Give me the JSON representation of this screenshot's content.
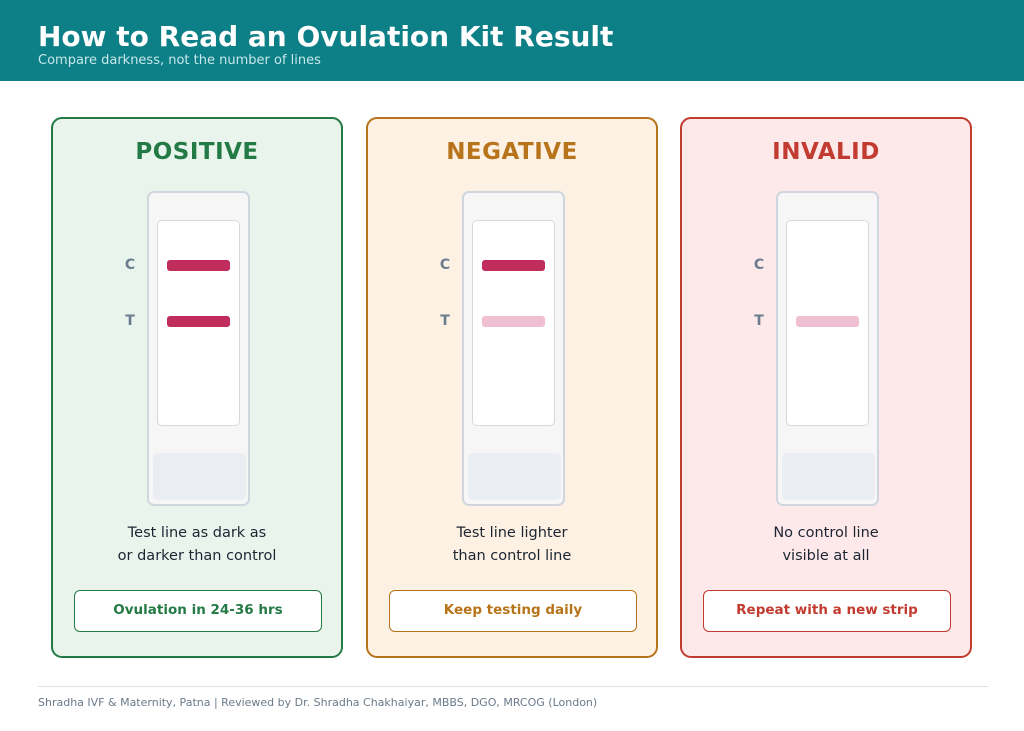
{
  "header": {
    "title": "How to Read an Ovulation Kit Result",
    "subtitle": "Compare darkness, not the number of lines"
  },
  "cards": [
    {
      "title": "POSITIVE",
      "control_label": "C",
      "test_label": "T",
      "control_line": "dark",
      "test_line": "dark",
      "description_line1": "Test line as dark as",
      "description_line2": "or darker than control",
      "action": "Ovulation in 24-36 hrs",
      "accent_color": "#237a45",
      "background_color": "#e9f5ec"
    },
    {
      "title": "NEGATIVE",
      "control_label": "C",
      "test_label": "T",
      "control_line": "dark",
      "test_line": "light",
      "description_line1": "Test line lighter",
      "description_line2": "than control line",
      "action": "Keep testing daily",
      "accent_color": "#b8741a",
      "background_color": "#fcf1e2"
    },
    {
      "title": "INVALID",
      "control_label": "C",
      "test_label": "T",
      "control_line": "none",
      "test_line": "light",
      "description_line1": "No control line",
      "description_line2": "visible at all",
      "action": "Repeat with a new strip",
      "accent_color": "#c23b30",
      "background_color": "#fde9ea"
    }
  ],
  "line_colors": {
    "dark": "#c02c5c",
    "light": "#f0bfd2"
  },
  "footer": {
    "text": "Shradha IVF & Maternity, Patna  |  Reviewed by Dr. Shradha Chakhaiyar, MBBS, DGO, MRCOG (London)"
  }
}
